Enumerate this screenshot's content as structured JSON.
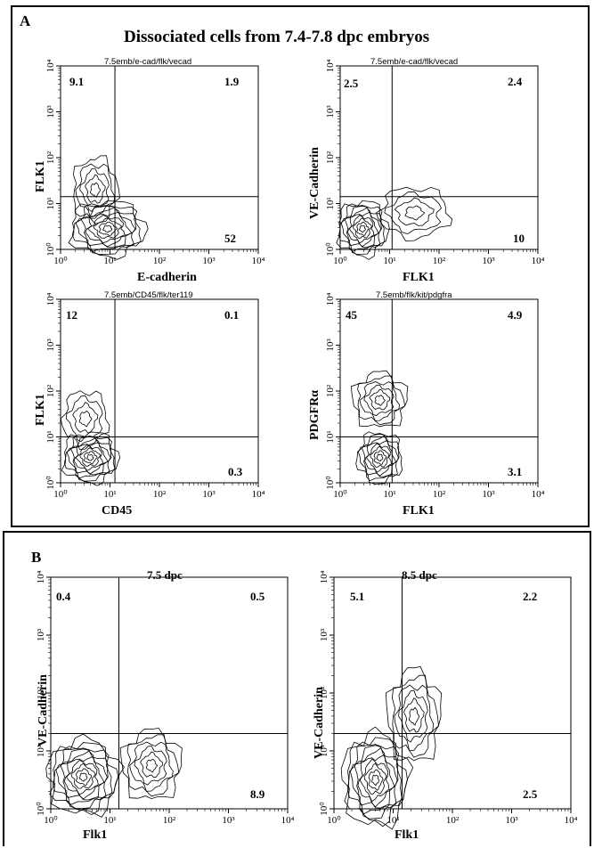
{
  "panel_a": {
    "letter": "A",
    "title": "Dissociated cells from 7.4-7.8 dpc embryos",
    "plots": [
      {
        "subtitle": "7.5emb/e-cad/flk/vecad",
        "xlabel": "E-cadherin",
        "ylabel": "FLK1",
        "q_ul": "9.1",
        "q_ur": "1.9",
        "q_lr": "52"
      },
      {
        "subtitle": "7.5emb/e-cad/flk/vecad",
        "xlabel": "FLK1",
        "ylabel": "VE-Cadherin",
        "q_ul": "2.5",
        "q_ur": "2.4",
        "q_lr": "10"
      },
      {
        "subtitle": "7.5emb/CD45/flk/ter119",
        "xlabel": "CD45",
        "ylabel": "FLK1",
        "q_ul": "12",
        "q_ur": "0.1",
        "q_lr": "0.3"
      },
      {
        "subtitle": "7.5emb/flk/kit/pdgfra",
        "xlabel": "FLK1",
        "ylabel": "PDGFRα",
        "q_ul": "45",
        "q_ur": "4.9",
        "q_lr": "3.1"
      }
    ]
  },
  "panel_b": {
    "letter": "B",
    "plots": [
      {
        "subtitle": "7.5 dpc",
        "xlabel": "Flk1",
        "ylabel": "VE-Cadherin",
        "q_ul": "0.4",
        "q_ur": "0.5",
        "q_lr": "8.9"
      },
      {
        "subtitle": "8.5 dpc",
        "xlabel": "Flk1",
        "ylabel": "VE-Cadherin",
        "q_ul": "5.1",
        "q_ur": "2.2",
        "q_lr": "2.5"
      }
    ]
  },
  "axis_tick_labels": [
    "10⁰",
    "10¹",
    "10²",
    "10³",
    "10⁴"
  ],
  "chart_data": [
    {
      "type": "contour",
      "subtitle": "7.5emb/e-cad/flk/vecad",
      "xlabel": "E-cadherin",
      "ylabel": "FLK1",
      "xscale": "log",
      "yscale": "log",
      "xlim": [
        1,
        10000
      ],
      "ylim": [
        1,
        10000
      ],
      "quadrants_percent": {
        "upper_left": 9.1,
        "upper_right": 1.9,
        "lower_right": 52
      }
    },
    {
      "type": "contour",
      "subtitle": "7.5emb/e-cad/flk/vecad",
      "xlabel": "FLK1",
      "ylabel": "VE-Cadherin",
      "xscale": "log",
      "yscale": "log",
      "xlim": [
        1,
        10000
      ],
      "ylim": [
        1,
        10000
      ],
      "quadrants_percent": {
        "upper_left": 2.5,
        "upper_right": 2.4,
        "lower_right": 10
      }
    },
    {
      "type": "contour",
      "subtitle": "7.5emb/CD45/flk/ter119",
      "xlabel": "CD45",
      "ylabel": "FLK1",
      "xscale": "log",
      "yscale": "log",
      "xlim": [
        1,
        10000
      ],
      "ylim": [
        1,
        10000
      ],
      "quadrants_percent": {
        "upper_left": 12,
        "upper_right": 0.1,
        "lower_right": 0.3
      }
    },
    {
      "type": "contour",
      "subtitle": "7.5emb/flk/kit/pdgfra",
      "xlabel": "FLK1",
      "ylabel": "PDGFRα",
      "xscale": "log",
      "yscale": "log",
      "xlim": [
        1,
        10000
      ],
      "ylim": [
        1,
        10000
      ],
      "quadrants_percent": {
        "upper_left": 45,
        "upper_right": 4.9,
        "lower_right": 3.1
      }
    },
    {
      "type": "contour",
      "subtitle": "7.5 dpc",
      "xlabel": "Flk1",
      "ylabel": "VE-Cadherin",
      "xscale": "log",
      "yscale": "log",
      "xlim": [
        1,
        10000
      ],
      "ylim": [
        1,
        10000
      ],
      "quadrants_percent": {
        "upper_left": 0.4,
        "upper_right": 0.5,
        "lower_right": 8.9
      }
    },
    {
      "type": "contour",
      "subtitle": "8.5 dpc",
      "xlabel": "Flk1",
      "ylabel": "VE-Cadherin",
      "xscale": "log",
      "yscale": "log",
      "xlim": [
        1,
        10000
      ],
      "ylim": [
        1,
        10000
      ],
      "quadrants_percent": {
        "upper_left": 5.1,
        "upper_right": 2.2,
        "lower_right": 2.5
      }
    }
  ]
}
